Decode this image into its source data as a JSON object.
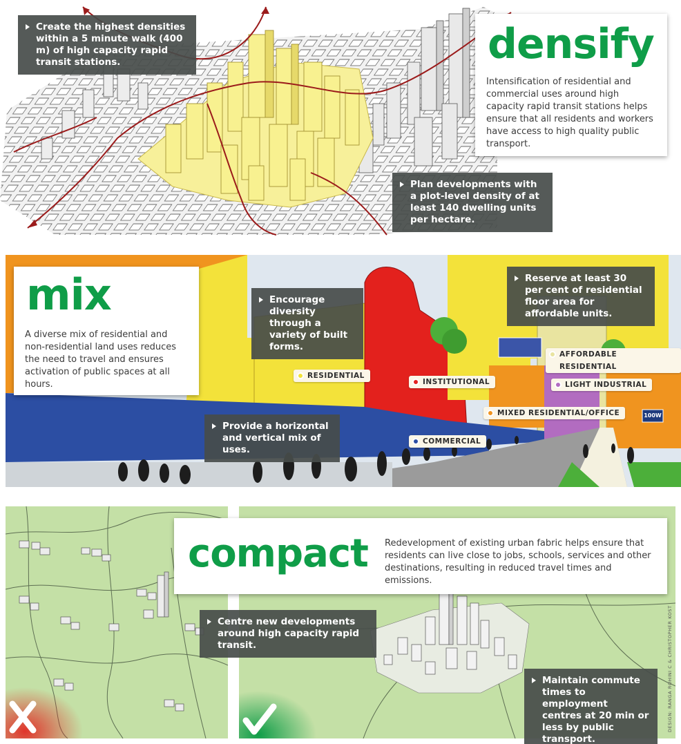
{
  "densify": {
    "title": "densify",
    "body": "Intensification of residential and commercial uses around high capacity rapid transit stations helps ensure that all residents and workers have access to high quality public transport.",
    "callout_1": "Create the highest densities within a 5 minute walk (400 m) of high capacity rapid transit stations.",
    "callout_2": "Plan developments with a plot-level density of at least 140 dwelling units per hectare."
  },
  "mix": {
    "title": "mix",
    "body": "A diverse mix of residential and non-residential land uses reduces the need to travel and ensures activation of public spaces at all hours.",
    "callout_1": "Encourage diversity through a variety of built forms.",
    "callout_2": "Reserve at least 30 per cent of residential floor area for affordable units.",
    "callout_3": "Provide a horizontal and vertical mix of uses.",
    "tags": {
      "residential": "RESIDENTIAL",
      "institutional": "INSTITUTIONAL",
      "commercial": "COMMERCIAL",
      "affordable": "AFFORDABLE RESIDENTIAL",
      "light_industrial": "LIGHT INDUSTRIAL",
      "mixed": "MIXED RESIDENTIAL/OFFICE"
    },
    "sign_text": "100W"
  },
  "compact": {
    "title": "compact",
    "body": "Redevelopment of existing urban fabric helps ensure that residents can live close to jobs, schools, services and other destinations, resulting in reduced travel times and emissions.",
    "callout_1": "Centre new developments around high capacity rapid transit.",
    "callout_2": "Maintain commute times to employment centres at 20 min or less by public transport."
  },
  "credit": "DESIGN: RANGA ROHINI C & CHRISTOPHER KOST",
  "colors": {
    "green": "#0f9d48",
    "residential": "#f3e23a",
    "institutional": "#e3211d",
    "commercial": "#2c4ea3",
    "mixed": "#f0941f",
    "light_industrial": "#b26cc0",
    "affordable": "#e9e4a0",
    "callout": "#464c4a",
    "compact_bg": "#c4e0a6"
  }
}
